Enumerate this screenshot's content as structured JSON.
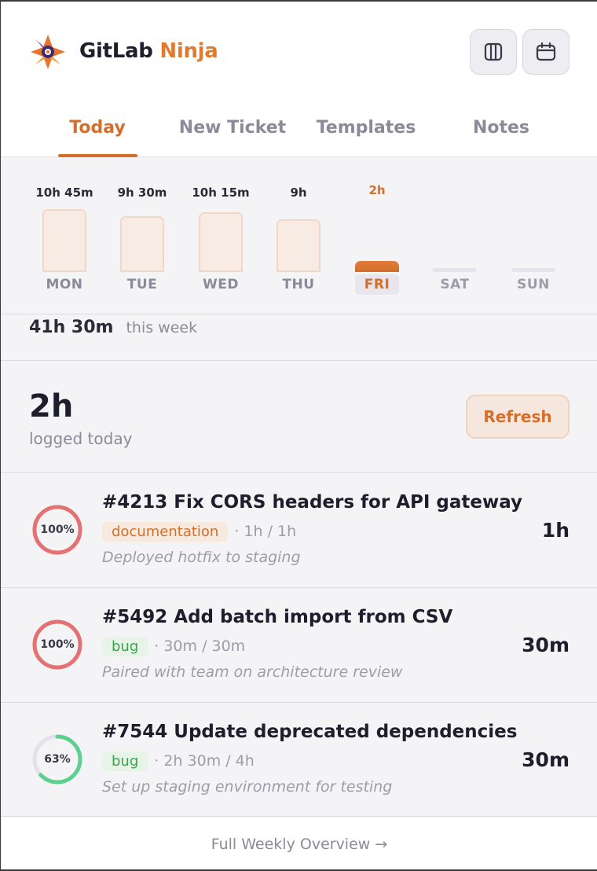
{
  "app": {
    "brand_part1": "GitLab",
    "brand_part2": "Ninja",
    "accent_color": "#d46f2b"
  },
  "header_icons": [
    {
      "name": "columns-icon"
    },
    {
      "name": "calendar-icon"
    }
  ],
  "tabs": [
    {
      "label": "Today",
      "active": true
    },
    {
      "label": "New Ticket",
      "active": false
    },
    {
      "label": "Templates",
      "active": false
    },
    {
      "label": "Notes",
      "active": false
    }
  ],
  "week": {
    "days": [
      {
        "label": "MON",
        "value": "10h 45m",
        "hours": 10.75
      },
      {
        "label": "TUE",
        "value": "9h 30m",
        "hours": 9.5
      },
      {
        "label": "WED",
        "value": "10h 15m",
        "hours": 10.25
      },
      {
        "label": "THU",
        "value": "9h",
        "hours": 9
      },
      {
        "label": "FRI",
        "value": "2h",
        "hours": 2,
        "active": true
      },
      {
        "label": "SAT",
        "value": "",
        "hours": 0
      },
      {
        "label": "SUN",
        "value": "",
        "hours": 0
      }
    ],
    "total_value": "41h 30m",
    "total_label": "this week"
  },
  "today": {
    "value": "2h",
    "label": "logged today",
    "refresh_label": "Refresh"
  },
  "tickets": [
    {
      "title": "#4213 Fix CORS headers for API gateway",
      "tag": "documentation",
      "tag_type": "doc",
      "progress": "· 1h / 1h",
      "percent": 100,
      "percent_label": "100%",
      "note": "Deployed hotfix to staging",
      "time": "1h"
    },
    {
      "title": "#5492 Add batch import from CSV",
      "tag": "bug",
      "tag_type": "bug",
      "progress": "· 30m / 30m",
      "percent": 100,
      "percent_label": "100%",
      "note": "Paired with team on architecture review",
      "time": "30m"
    },
    {
      "title": "#7544 Update deprecated dependencies",
      "tag": "bug",
      "tag_type": "bug",
      "progress": "· 2h 30m / 4h",
      "percent": 63,
      "percent_label": "63%",
      "note": "Set up staging environment for testing",
      "time": "30m"
    }
  ],
  "footer": {
    "link_label": "Full Weekly Overview →"
  }
}
